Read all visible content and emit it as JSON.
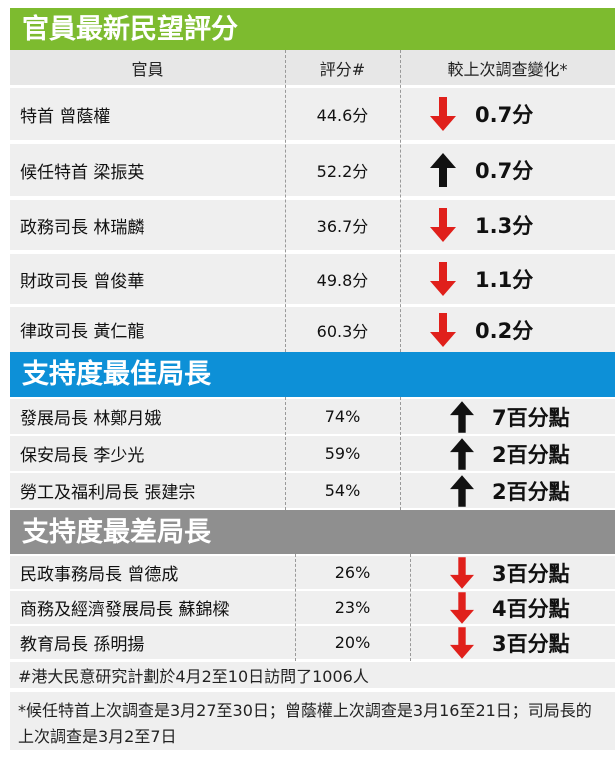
{
  "header": {
    "col_official": "官員",
    "col_score": "評分#",
    "col_change": "較上次調查變化*"
  },
  "sections": [
    {
      "title": "官員最新民望評分",
      "rows": [
        {
          "name": "特首 曾蔭權",
          "score": "44.6分",
          "direction": "down",
          "change": "0.7分"
        },
        {
          "name": "候任特首 梁振英",
          "score": "52.2分",
          "direction": "up",
          "change": "0.7分"
        },
        {
          "name": "政務司長 林瑞麟",
          "score": "36.7分",
          "direction": "down",
          "change": "1.3分"
        },
        {
          "name": "財政司長 曾俊華",
          "score": "49.8分",
          "direction": "down",
          "change": "1.1分"
        },
        {
          "name": "律政司長 黃仁龍",
          "score": "60.3分",
          "direction": "down",
          "change": "0.2分"
        }
      ]
    },
    {
      "title": "支持度最佳局長",
      "rows": [
        {
          "name": "發展局長 林鄭月娥",
          "score": "74%",
          "direction": "up",
          "change": "7百分點"
        },
        {
          "name": "保安局長 李少光",
          "score": "59%",
          "direction": "up",
          "change": "2百分點"
        },
        {
          "name": "勞工及福利局長 張建宗",
          "score": "54%",
          "direction": "up",
          "change": "2百分點"
        }
      ]
    },
    {
      "title": "支持度最差局長",
      "rows": [
        {
          "name": "民政事務局長 曾德成",
          "score": "26%",
          "direction": "down",
          "change": "3百分點"
        },
        {
          "name": "商務及經濟發展局長 蘇錦樑",
          "score": "23%",
          "direction": "down",
          "change": "4百分點"
        },
        {
          "name": "教育局長 孫明揚",
          "score": "20%",
          "direction": "down",
          "change": "3百分點"
        }
      ]
    }
  ],
  "footnotes": [
    "#港大民意研究計劃於4月2至10日訪問了1006人",
    "*候任特首上次調查是3月27至30日；曾蔭權上次調查是3月16至21日；司局長的上次調查是3月2至7日"
  ],
  "colors": {
    "section1": "#7dbb2f",
    "section2": "#0d90d7",
    "section3": "#8f8f8f",
    "down_arrow": "#e0201b",
    "up_arrow": "#111111"
  }
}
